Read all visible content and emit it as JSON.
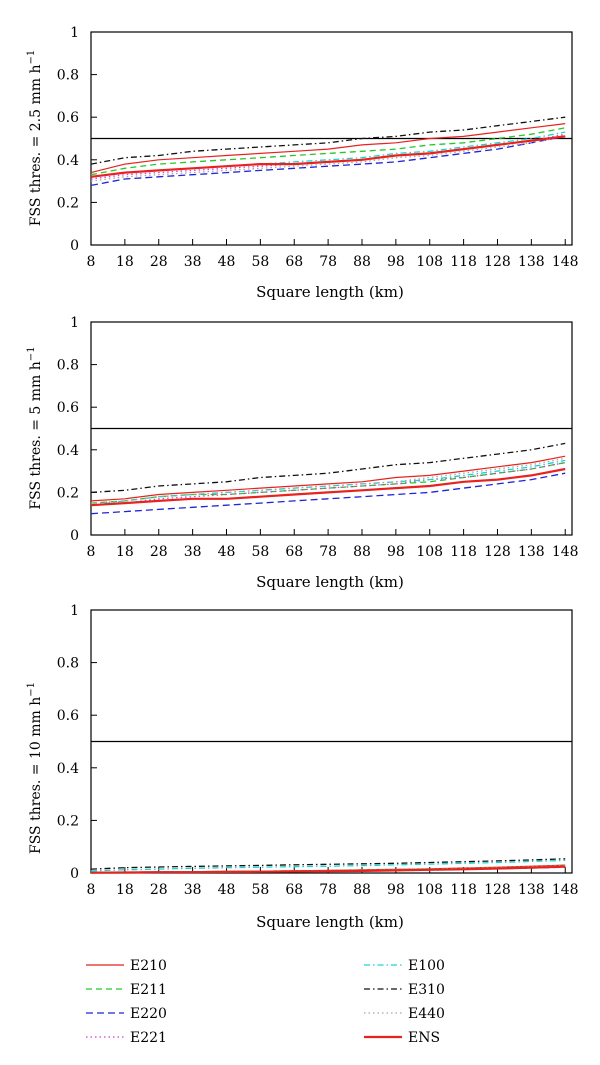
{
  "chart_data": [
    {
      "type": "line",
      "xlabel": "Square length (km)",
      "ylabel": "FSS thres. = 2.5 mm h",
      "ylabel_sup": "−1",
      "xlim": [
        8,
        150
      ],
      "ylim": [
        0,
        1
      ],
      "xticks": [
        8,
        18,
        28,
        38,
        48,
        58,
        68,
        78,
        88,
        98,
        108,
        118,
        128,
        138,
        148
      ],
      "yticks": [
        0,
        0.2,
        0.4,
        0.6,
        0.8,
        1
      ],
      "ytick_labels": [
        "0",
        "0.2",
        "0.4",
        "0.6",
        "0.8",
        "1"
      ],
      "reference_line": 0.5,
      "x": [
        8,
        18,
        28,
        38,
        48,
        58,
        68,
        78,
        88,
        98,
        108,
        118,
        128,
        138,
        148
      ],
      "series": [
        {
          "name": "E210",
          "values": [
            0.34,
            0.38,
            0.4,
            0.41,
            0.42,
            0.43,
            0.44,
            0.45,
            0.47,
            0.48,
            0.5,
            0.51,
            0.53,
            0.55,
            0.57
          ]
        },
        {
          "name": "E211",
          "values": [
            0.33,
            0.36,
            0.38,
            0.39,
            0.4,
            0.41,
            0.42,
            0.43,
            0.44,
            0.45,
            0.47,
            0.48,
            0.5,
            0.52,
            0.55
          ]
        },
        {
          "name": "E220",
          "values": [
            0.28,
            0.31,
            0.32,
            0.33,
            0.34,
            0.35,
            0.36,
            0.37,
            0.38,
            0.39,
            0.41,
            0.43,
            0.45,
            0.48,
            0.51
          ]
        },
        {
          "name": "E221",
          "values": [
            0.31,
            0.33,
            0.34,
            0.35,
            0.36,
            0.37,
            0.38,
            0.39,
            0.4,
            0.42,
            0.43,
            0.45,
            0.47,
            0.49,
            0.52
          ]
        },
        {
          "name": "E100",
          "values": [
            0.32,
            0.34,
            0.35,
            0.36,
            0.37,
            0.38,
            0.39,
            0.4,
            0.41,
            0.43,
            0.44,
            0.46,
            0.48,
            0.5,
            0.53
          ]
        },
        {
          "name": "E310",
          "values": [
            0.38,
            0.41,
            0.42,
            0.44,
            0.45,
            0.46,
            0.47,
            0.48,
            0.5,
            0.51,
            0.53,
            0.54,
            0.56,
            0.58,
            0.6
          ]
        },
        {
          "name": "E440",
          "values": [
            0.3,
            0.32,
            0.33,
            0.34,
            0.35,
            0.36,
            0.37,
            0.38,
            0.39,
            0.41,
            0.42,
            0.44,
            0.46,
            0.48,
            0.51
          ]
        },
        {
          "name": "ENS",
          "values": [
            0.32,
            0.34,
            0.35,
            0.36,
            0.37,
            0.38,
            0.38,
            0.39,
            0.4,
            0.42,
            0.43,
            0.45,
            0.47,
            0.49,
            0.51
          ]
        }
      ]
    },
    {
      "type": "line",
      "xlabel": "Square length (km)",
      "ylabel": "FSS thres. = 5 mm h",
      "ylabel_sup": "−1",
      "xlim": [
        8,
        150
      ],
      "ylim": [
        0,
        1
      ],
      "xticks": [
        8,
        18,
        28,
        38,
        48,
        58,
        68,
        78,
        88,
        98,
        108,
        118,
        128,
        138,
        148
      ],
      "yticks": [
        0,
        0.2,
        0.4,
        0.6,
        0.8,
        1
      ],
      "ytick_labels": [
        "0",
        "0.2",
        "0.4",
        "0.6",
        "0.8",
        "1"
      ],
      "reference_line": 0.5,
      "x": [
        8,
        18,
        28,
        38,
        48,
        58,
        68,
        78,
        88,
        98,
        108,
        118,
        128,
        138,
        148
      ],
      "series": [
        {
          "name": "E210",
          "values": [
            0.16,
            0.17,
            0.19,
            0.2,
            0.21,
            0.22,
            0.23,
            0.24,
            0.25,
            0.27,
            0.28,
            0.3,
            0.32,
            0.34,
            0.37
          ]
        },
        {
          "name": "E211",
          "values": [
            0.15,
            0.16,
            0.18,
            0.19,
            0.19,
            0.2,
            0.21,
            0.22,
            0.23,
            0.24,
            0.25,
            0.27,
            0.29,
            0.31,
            0.34
          ]
        },
        {
          "name": "E220",
          "values": [
            0.1,
            0.11,
            0.12,
            0.13,
            0.14,
            0.15,
            0.16,
            0.17,
            0.18,
            0.19,
            0.2,
            0.22,
            0.24,
            0.26,
            0.29
          ]
        },
        {
          "name": "E221",
          "values": [
            0.14,
            0.15,
            0.17,
            0.18,
            0.19,
            0.2,
            0.21,
            0.22,
            0.23,
            0.24,
            0.26,
            0.27,
            0.29,
            0.31,
            0.34
          ]
        },
        {
          "name": "E100",
          "values": [
            0.14,
            0.16,
            0.18,
            0.19,
            0.2,
            0.21,
            0.22,
            0.23,
            0.24,
            0.25,
            0.26,
            0.28,
            0.3,
            0.32,
            0.35
          ]
        },
        {
          "name": "E310",
          "values": [
            0.2,
            0.21,
            0.23,
            0.24,
            0.25,
            0.27,
            0.28,
            0.29,
            0.31,
            0.33,
            0.34,
            0.36,
            0.38,
            0.4,
            0.43
          ]
        },
        {
          "name": "E440",
          "values": [
            0.15,
            0.16,
            0.18,
            0.19,
            0.2,
            0.21,
            0.22,
            0.23,
            0.24,
            0.25,
            0.27,
            0.29,
            0.31,
            0.33,
            0.36
          ]
        },
        {
          "name": "ENS",
          "values": [
            0.14,
            0.15,
            0.16,
            0.17,
            0.17,
            0.18,
            0.19,
            0.2,
            0.21,
            0.22,
            0.23,
            0.25,
            0.26,
            0.28,
            0.31
          ]
        }
      ]
    },
    {
      "type": "line",
      "xlabel": "Square length (km)",
      "ylabel": "FSS thres. = 10 mm h",
      "ylabel_sup": "−1",
      "xlim": [
        8,
        150
      ],
      "ylim": [
        0,
        1
      ],
      "xticks": [
        8,
        18,
        28,
        38,
        48,
        58,
        68,
        78,
        88,
        98,
        108,
        118,
        128,
        138,
        148
      ],
      "yticks": [
        0,
        0.2,
        0.4,
        0.6,
        0.8,
        1
      ],
      "ytick_labels": [
        "0",
        "0.2",
        "0.4",
        "0.6",
        "0.8",
        "1"
      ],
      "reference_line": 0.5,
      "x": [
        8,
        18,
        28,
        38,
        48,
        58,
        68,
        78,
        88,
        98,
        108,
        118,
        128,
        138,
        148
      ],
      "series": [
        {
          "name": "E210",
          "values": [
            0.002,
            0.003,
            0.004,
            0.005,
            0.006,
            0.007,
            0.008,
            0.01,
            0.012,
            0.014,
            0.016,
            0.019,
            0.022,
            0.026,
            0.03
          ]
        },
        {
          "name": "E211",
          "values": [
            0.002,
            0.003,
            0.004,
            0.005,
            0.006,
            0.007,
            0.008,
            0.009,
            0.011,
            0.013,
            0.015,
            0.017,
            0.02,
            0.023,
            0.027
          ]
        },
        {
          "name": "E220",
          "values": [
            0.001,
            0.002,
            0.002,
            0.003,
            0.004,
            0.005,
            0.006,
            0.007,
            0.008,
            0.01,
            0.012,
            0.014,
            0.016,
            0.019,
            0.022
          ]
        },
        {
          "name": "E221",
          "values": [
            0.002,
            0.002,
            0.003,
            0.004,
            0.005,
            0.006,
            0.007,
            0.008,
            0.01,
            0.012,
            0.014,
            0.016,
            0.018,
            0.021,
            0.025
          ]
        },
        {
          "name": "E100",
          "values": [
            0.008,
            0.012,
            0.015,
            0.018,
            0.02,
            0.022,
            0.024,
            0.026,
            0.028,
            0.031,
            0.034,
            0.037,
            0.04,
            0.044,
            0.048
          ]
        },
        {
          "name": "E310",
          "values": [
            0.015,
            0.02,
            0.023,
            0.025,
            0.027,
            0.029,
            0.031,
            0.033,
            0.035,
            0.037,
            0.04,
            0.043,
            0.046,
            0.05,
            0.054
          ]
        },
        {
          "name": "E440",
          "values": [
            0.002,
            0.003,
            0.004,
            0.005,
            0.006,
            0.007,
            0.008,
            0.009,
            0.011,
            0.013,
            0.015,
            0.018,
            0.021,
            0.024,
            0.028
          ]
        },
        {
          "name": "ENS",
          "values": [
            0.001,
            0.002,
            0.003,
            0.003,
            0.004,
            0.005,
            0.006,
            0.007,
            0.008,
            0.01,
            0.012,
            0.014,
            0.017,
            0.02,
            0.024
          ]
        }
      ]
    }
  ],
  "legend": [
    {
      "name": "E210",
      "color": "#e8231f",
      "dash": "",
      "width": 1.2
    },
    {
      "name": "E211",
      "color": "#22c928",
      "dash": "6,4",
      "width": 1.3
    },
    {
      "name": "E220",
      "color": "#1f25d8",
      "dash": "7,4",
      "width": 1.3
    },
    {
      "name": "E221",
      "color": "#d63fd0",
      "dash": "1.5,3",
      "width": 1.3
    },
    {
      "name": "E100",
      "color": "#17d3d3",
      "dash": "6,3,1.5,3",
      "width": 1.3
    },
    {
      "name": "E310",
      "color": "#111111",
      "dash": "6,3,1.5,3",
      "width": 1.3
    },
    {
      "name": "E440",
      "color": "#a6a6a6",
      "dash": "1.5,3",
      "width": 1.3
    },
    {
      "name": "ENS",
      "color": "#e8231f",
      "dash": "",
      "width": 2.2
    }
  ]
}
